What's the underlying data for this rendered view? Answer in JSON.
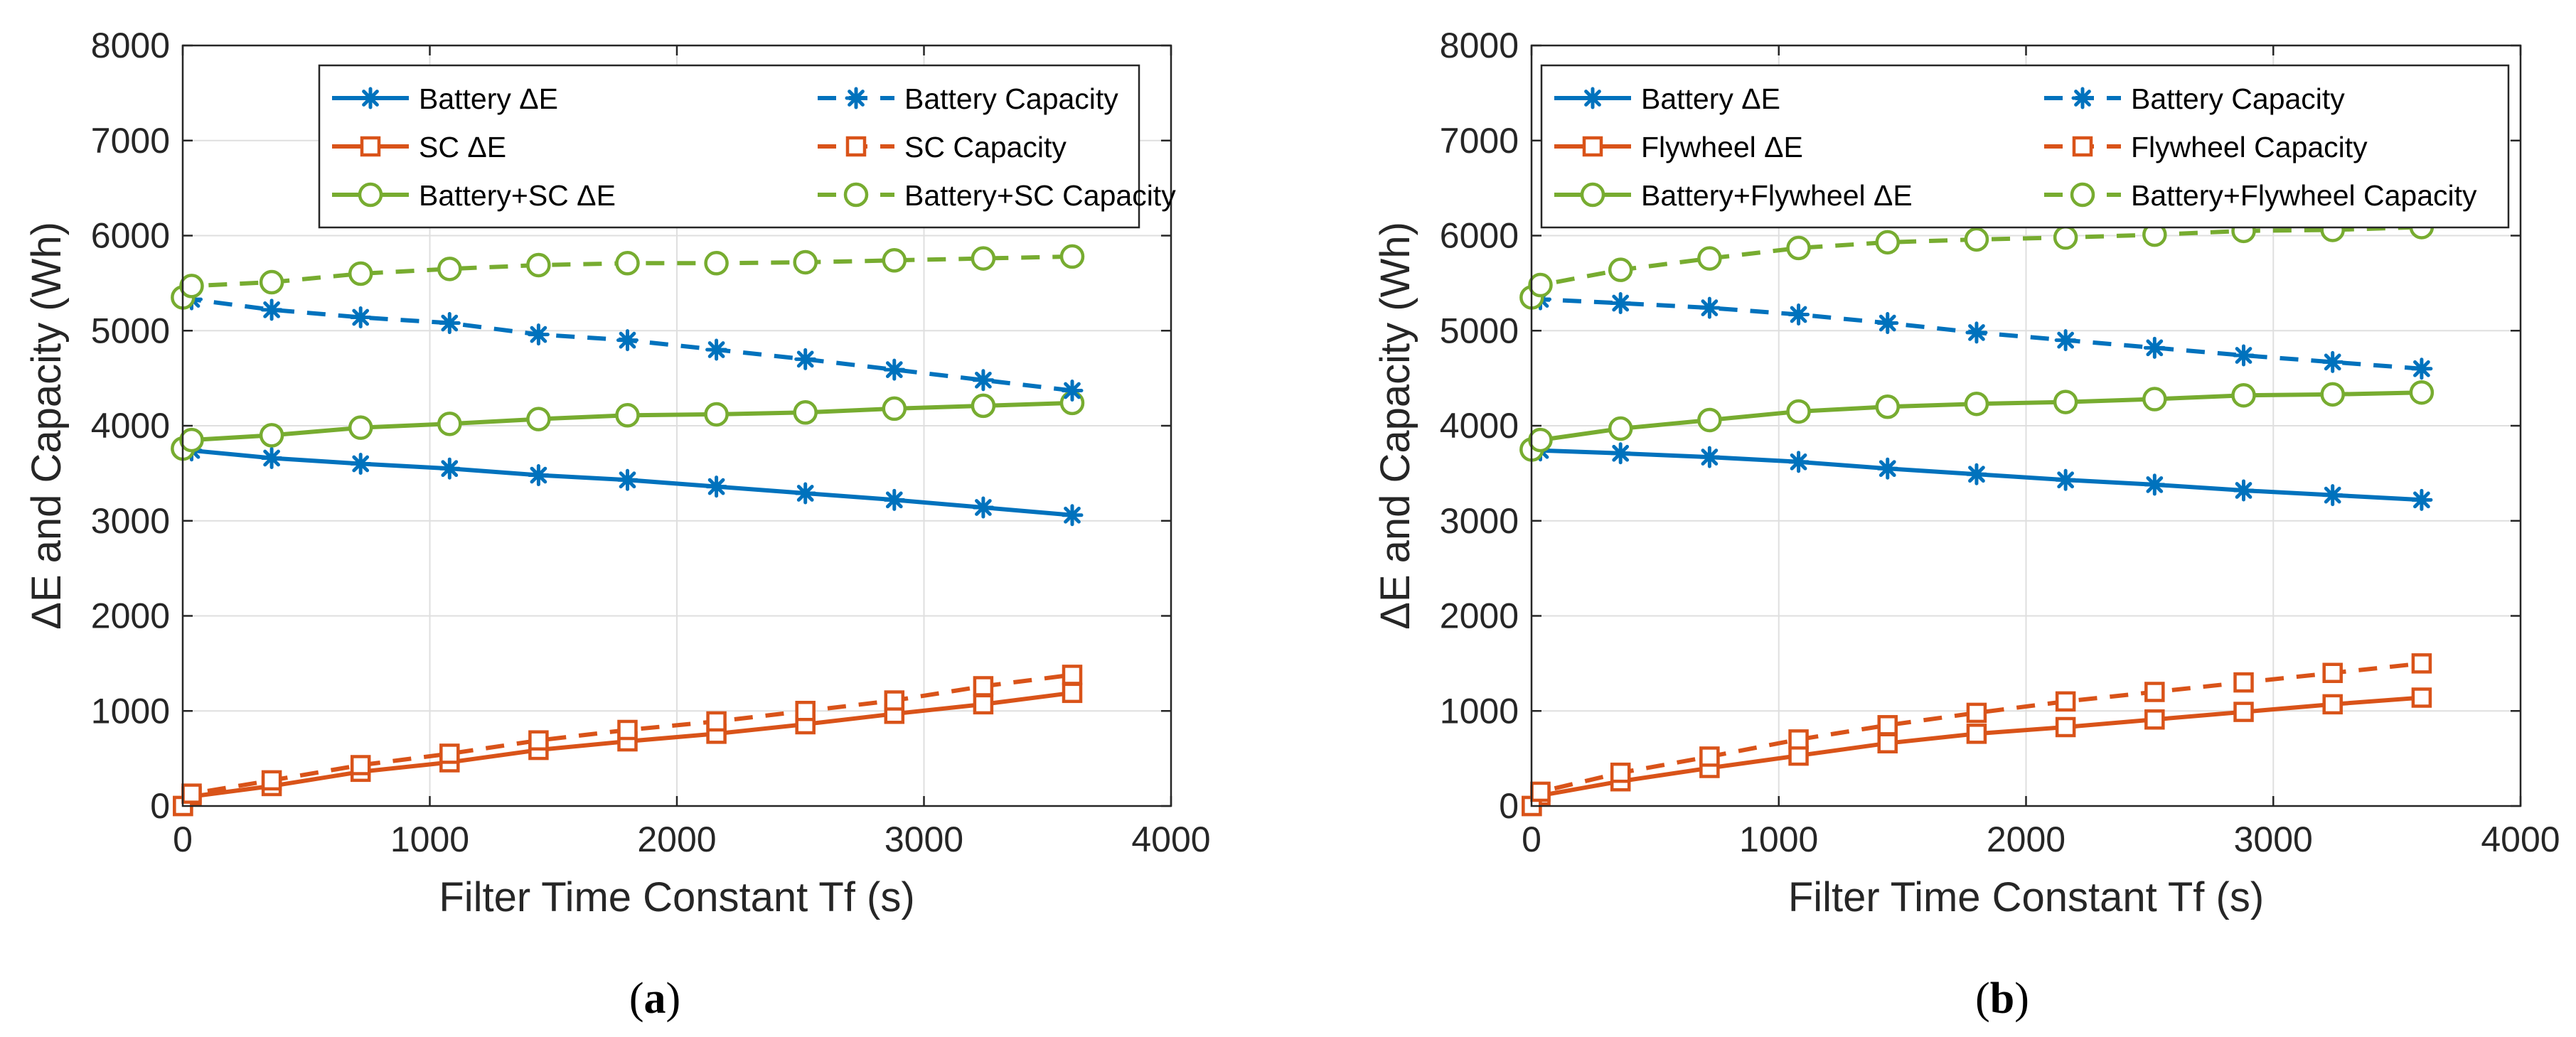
{
  "chart_data": [
    {
      "type": "line",
      "caption_open": "(",
      "caption_letter": "a",
      "caption_close": ")",
      "xlabel": "Filter Time Constant Tf (s)",
      "ylabel": "ΔE and Capacity (Wh)",
      "xlim": [
        0,
        4000
      ],
      "ylim": [
        0,
        8000
      ],
      "xticks": [
        0,
        1000,
        2000,
        3000,
        4000
      ],
      "yticks": [
        0,
        1000,
        2000,
        3000,
        4000,
        5000,
        6000,
        7000,
        8000
      ],
      "grid": true,
      "legend_position": "top-right",
      "x": [
        1,
        36,
        360,
        720,
        1080,
        1440,
        1800,
        2160,
        2520,
        2880,
        3240,
        3600
      ],
      "series": [
        {
          "name": "Battery ΔE",
          "color": "#0072BD",
          "dash": "solid",
          "marker": "asterisk",
          "values": [
            3760,
            3740,
            3660,
            3600,
            3550,
            3480,
            3430,
            3360,
            3290,
            3220,
            3140,
            3060
          ]
        },
        {
          "name": "SC ΔE",
          "color": "#D95319",
          "dash": "solid",
          "marker": "square",
          "values": [
            0,
            100,
            210,
            360,
            460,
            590,
            680,
            760,
            860,
            970,
            1070,
            1190
          ]
        },
        {
          "name": "Battery+SC ΔE",
          "color": "#77AC30",
          "dash": "solid",
          "marker": "circle",
          "values": [
            3760,
            3850,
            3900,
            3980,
            4020,
            4070,
            4110,
            4120,
            4140,
            4180,
            4210,
            4240
          ]
        },
        {
          "name": "Battery Capacity",
          "color": "#0072BD",
          "dash": "dashed",
          "marker": "asterisk",
          "values": [
            5350,
            5330,
            5220,
            5140,
            5080,
            4960,
            4900,
            4800,
            4700,
            4590,
            4480,
            4370
          ]
        },
        {
          "name": "SC Capacity",
          "color": "#D95319",
          "dash": "dashed",
          "marker": "square",
          "values": [
            0,
            130,
            270,
            430,
            550,
            690,
            800,
            890,
            1000,
            1110,
            1260,
            1380
          ]
        },
        {
          "name": "Battery+SC Capacity",
          "color": "#77AC30",
          "dash": "dashed",
          "marker": "circle",
          "values": [
            5350,
            5470,
            5510,
            5600,
            5650,
            5690,
            5710,
            5710,
            5720,
            5740,
            5760,
            5780
          ]
        }
      ]
    },
    {
      "type": "line",
      "caption_open": "(",
      "caption_letter": "b",
      "caption_close": ")",
      "xlabel": "Filter Time Constant Tf (s)",
      "ylabel": "ΔE and Capacity (Wh)",
      "xlim": [
        0,
        4000
      ],
      "ylim": [
        0,
        8000
      ],
      "xticks": [
        0,
        1000,
        2000,
        3000,
        4000
      ],
      "yticks": [
        0,
        1000,
        2000,
        3000,
        4000,
        5000,
        6000,
        7000,
        8000
      ],
      "grid": true,
      "legend_position": "top",
      "x": [
        1,
        36,
        360,
        720,
        1080,
        1440,
        1800,
        2160,
        2520,
        2880,
        3240,
        3600
      ],
      "series": [
        {
          "name": "Battery ΔE",
          "color": "#0072BD",
          "dash": "solid",
          "marker": "asterisk",
          "values": [
            3750,
            3740,
            3710,
            3670,
            3620,
            3550,
            3490,
            3430,
            3380,
            3320,
            3270,
            3220
          ]
        },
        {
          "name": "Flywheel ΔE",
          "color": "#D95319",
          "dash": "solid",
          "marker": "square",
          "values": [
            0,
            110,
            260,
            400,
            530,
            660,
            760,
            830,
            910,
            990,
            1070,
            1140
          ]
        },
        {
          "name": "Battery+Flywheel ΔE",
          "color": "#77AC30",
          "dash": "solid",
          "marker": "circle",
          "values": [
            3750,
            3850,
            3970,
            4060,
            4150,
            4200,
            4230,
            4250,
            4280,
            4320,
            4330,
            4350
          ]
        },
        {
          "name": "Battery Capacity",
          "color": "#0072BD",
          "dash": "dashed",
          "marker": "asterisk",
          "values": [
            5350,
            5330,
            5290,
            5240,
            5170,
            5080,
            4980,
            4900,
            4820,
            4740,
            4670,
            4600
          ]
        },
        {
          "name": "Flywheel Capacity",
          "color": "#D95319",
          "dash": "dashed",
          "marker": "square",
          "values": [
            0,
            150,
            350,
            520,
            700,
            850,
            980,
            1100,
            1200,
            1300,
            1400,
            1500
          ]
        },
        {
          "name": "Battery+Flywheel Capacity",
          "color": "#77AC30",
          "dash": "dashed",
          "marker": "circle",
          "values": [
            5350,
            5480,
            5640,
            5760,
            5870,
            5930,
            5960,
            5980,
            6010,
            6050,
            6060,
            6090
          ]
        }
      ]
    }
  ]
}
